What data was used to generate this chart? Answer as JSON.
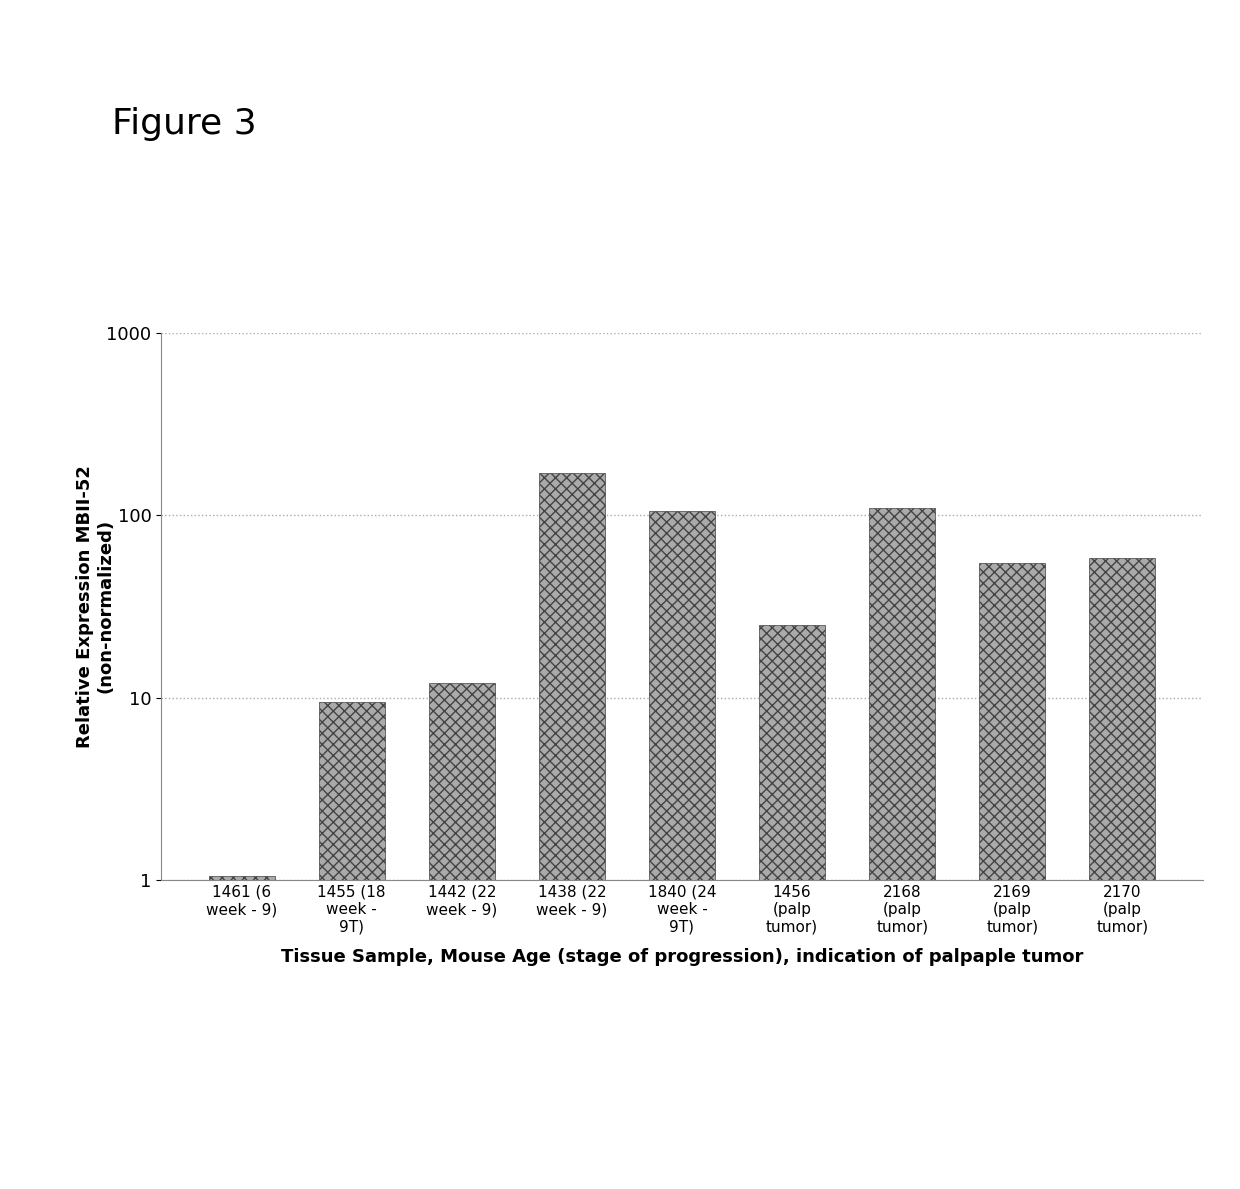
{
  "title": "Figure 3",
  "xlabel": "Tissue Sample, Mouse Age (stage of progression), indication of palpaple tumor",
  "ylabel": "Relative Expression MBII-52\n(non-normalized)",
  "categories": [
    "1461 (6\nweek - 9)",
    "1455 (18\nweek -\n9T)",
    "1442 (22\nweek - 9)",
    "1438 (22\nweek - 9)",
    "1840 (24\nweek -\n9T)",
    "1456\n(palp\ntumor)",
    "2168\n(palp\ntumor)",
    "2169\n(palp\ntumor)",
    "2170\n(palp\ntumor)"
  ],
  "values": [
    1.05,
    9.5,
    12.0,
    170.0,
    105.0,
    25.0,
    110.0,
    55.0,
    58.0
  ],
  "bar_color": "#aaaaaa",
  "background_color": "#ffffff",
  "ylim_min": 1,
  "ylim_max": 1000,
  "title_fontsize": 26,
  "axis_label_fontsize": 13,
  "tick_fontsize": 11,
  "ytick_fontsize": 13
}
